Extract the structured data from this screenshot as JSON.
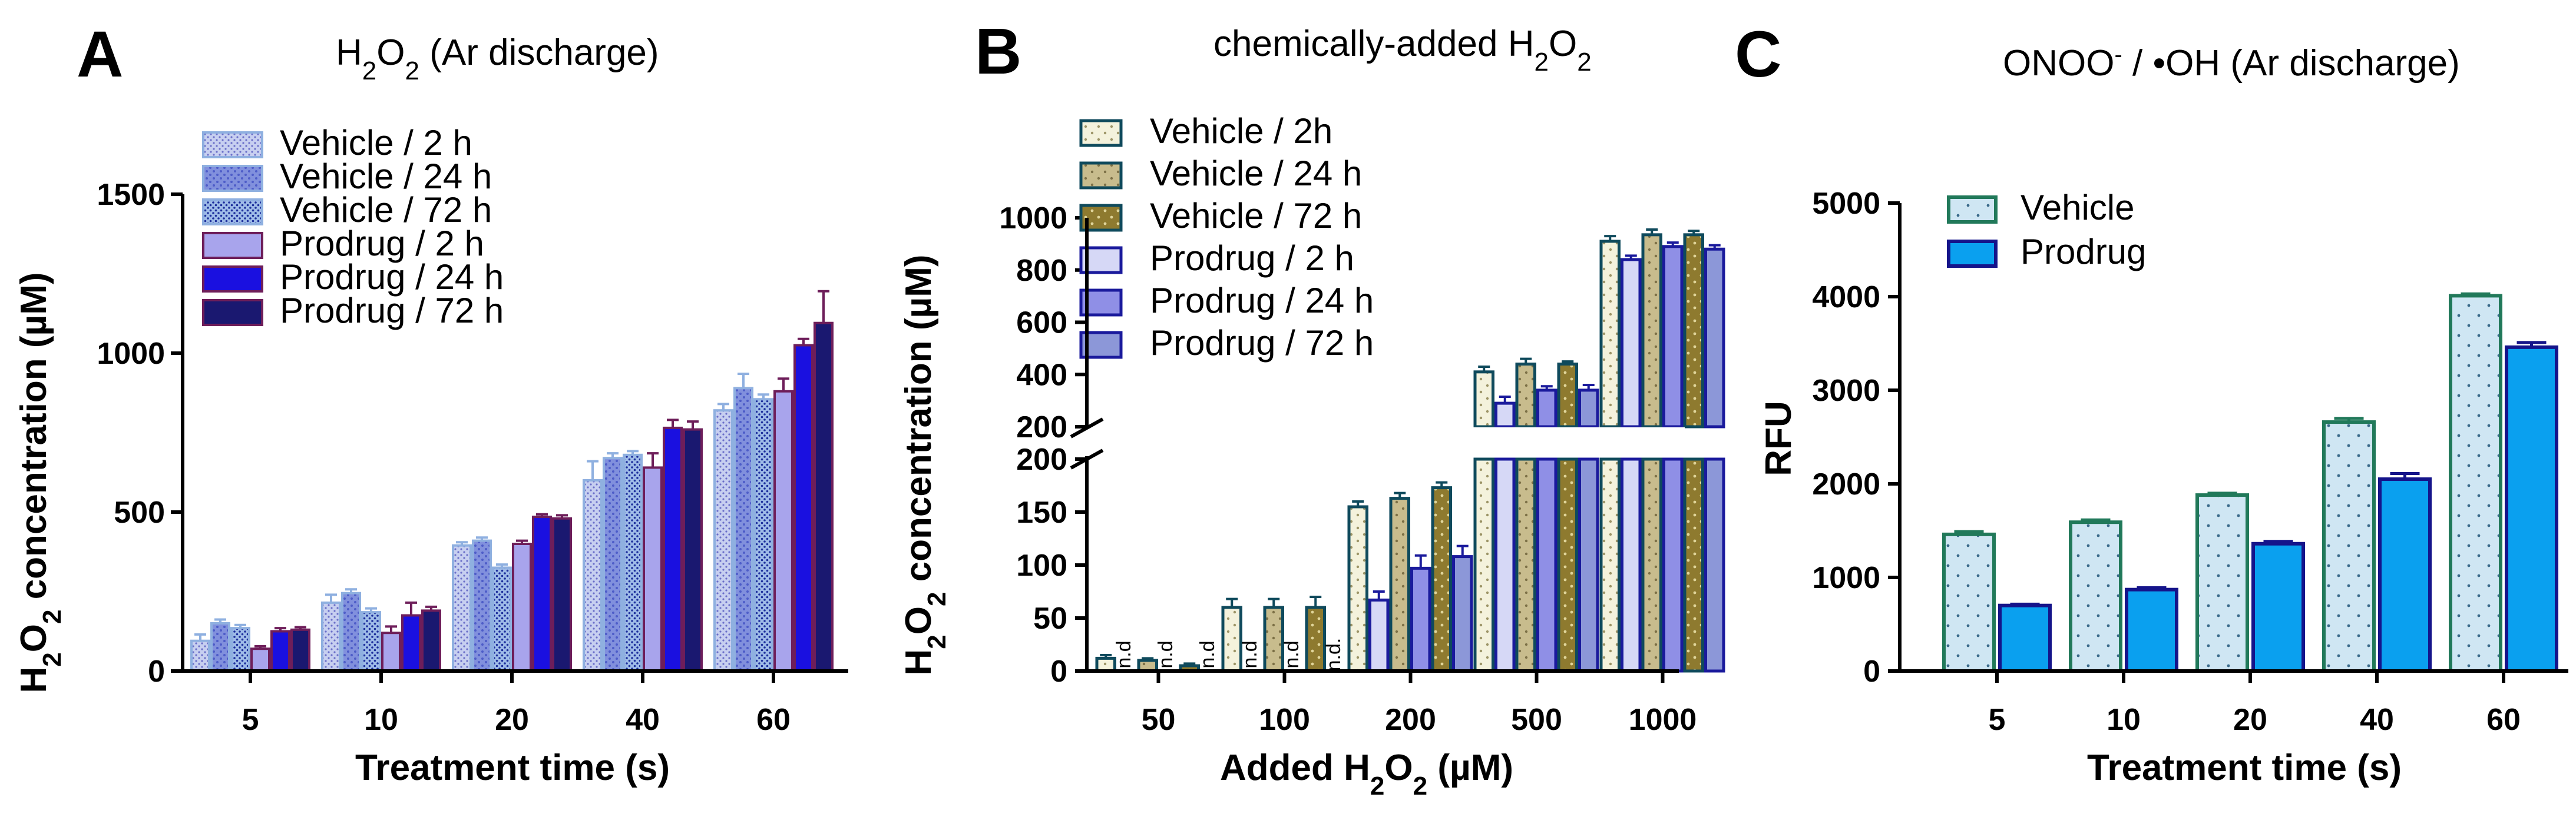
{
  "chart_data": [
    {
      "panel": "A",
      "type": "bar",
      "title": "H₂O₂ (Ar discharge)",
      "title_main": "H",
      "title_parts": [
        "H",
        "2",
        "O",
        "2",
        " (Ar discharge)"
      ],
      "xlabel": "Treatment time (s)",
      "ylabel_parts": [
        "H",
        "2",
        "O",
        "2",
        " concentration (µM)"
      ],
      "ylim": [
        0,
        1500
      ],
      "yticks": [
        "0",
        "500",
        "1000",
        "1500"
      ],
      "categories": [
        "5",
        "10",
        "20",
        "40",
        "60"
      ],
      "series": [
        {
          "name": "Vehicle / 2 h",
          "values": [
            95,
            215,
            395,
            600,
            820
          ],
          "errors": [
            20,
            25,
            10,
            60,
            20
          ]
        },
        {
          "name": "Vehicle / 24 h",
          "values": [
            150,
            245,
            410,
            670,
            890
          ],
          "errors": [
            12,
            12,
            10,
            15,
            45
          ]
        },
        {
          "name": "Vehicle / 72 h",
          "values": [
            135,
            185,
            325,
            680,
            855
          ],
          "errors": [
            10,
            12,
            10,
            12,
            15
          ]
        },
        {
          "name": "Prodrug / 2 h",
          "values": [
            70,
            120,
            400,
            640,
            880
          ],
          "errors": [
            8,
            20,
            10,
            45,
            40
          ]
        },
        {
          "name": "Prodrug / 24 h",
          "values": [
            125,
            175,
            485,
            765,
            1025
          ],
          "errors": [
            10,
            40,
            8,
            25,
            20
          ]
        },
        {
          "name": "Prodrug / 72 h",
          "values": [
            130,
            190,
            480,
            760,
            1095
          ],
          "errors": [
            8,
            12,
            10,
            25,
            100
          ]
        }
      ]
    },
    {
      "panel": "B",
      "type": "bar",
      "title_parts": [
        "chemically-added H",
        "2",
        "O",
        "2",
        ""
      ],
      "xlabel_parts": [
        "Added H",
        "2",
        "O",
        "2",
        " (µM)"
      ],
      "ylabel_parts": [
        "H",
        "2",
        "O",
        "2",
        " concentration (µM)"
      ],
      "broken_axis": true,
      "ylim_lower": [
        0,
        200
      ],
      "ylim_upper": [
        200,
        1000
      ],
      "yticks_lower": [
        "0",
        "50",
        "100",
        "150",
        "200"
      ],
      "yticks_upper": [
        "200",
        "400",
        "600",
        "800",
        "1000"
      ],
      "categories": [
        "50",
        "100",
        "200",
        "500",
        "1000"
      ],
      "not_detected_label": "n.d",
      "not_detected_label_dot": "n.d.",
      "series": [
        {
          "name": "Vehicle / 2h",
          "values": [
            12,
            60,
            155,
            410,
            910
          ],
          "errors": [
            3,
            8,
            5,
            20,
            20
          ]
        },
        {
          "name": "Prodrug / 2 h",
          "values": [
            null,
            null,
            67,
            290,
            840
          ],
          "errors": [
            0,
            0,
            8,
            25,
            15
          ]
        },
        {
          "name": "Vehicle / 24 h",
          "values": [
            10,
            60,
            163,
            440,
            935
          ],
          "errors": [
            2,
            8,
            5,
            20,
            20
          ]
        },
        {
          "name": "Prodrug / 24 h",
          "values": [
            null,
            null,
            97,
            340,
            890
          ],
          "errors": [
            0,
            0,
            12,
            15,
            15
          ]
        },
        {
          "name": "Vehicle / 72 h",
          "values": [
            5,
            60,
            173,
            440,
            935
          ],
          "errors": [
            2,
            10,
            5,
            10,
            15
          ]
        },
        {
          "name": "Prodrug / 72 h",
          "values": [
            null,
            null,
            108,
            340,
            880
          ],
          "errors": [
            0,
            0,
            10,
            20,
            15
          ]
        }
      ],
      "legend_order": [
        "Vehicle / 2h",
        "Vehicle / 24 h",
        "Vehicle / 72 h",
        "Prodrug / 2 h",
        "Prodrug / 24 h",
        "Prodrug / 72 h"
      ]
    },
    {
      "panel": "C",
      "type": "bar",
      "title_parts": [
        "ONOO",
        "-",
        " / •OH  (Ar discharge)"
      ],
      "xlabel": "Treatment time (s)",
      "ylabel": "RFU",
      "ylim": [
        0,
        5000
      ],
      "yticks": [
        "0",
        "1000",
        "2000",
        "3000",
        "4000",
        "5000"
      ],
      "categories": [
        "5",
        "10",
        "20",
        "40",
        "60"
      ],
      "series": [
        {
          "name": "Vehicle",
          "values": [
            1460,
            1590,
            1880,
            2660,
            4010
          ],
          "errors": [
            30,
            25,
            20,
            40,
            20
          ]
        },
        {
          "name": "Prodrug",
          "values": [
            700,
            870,
            1360,
            2050,
            3460
          ],
          "errors": [
            15,
            20,
            25,
            60,
            50
          ]
        }
      ]
    }
  ],
  "colors": {
    "A_fills": [
      "#b9c3ec",
      "#8a97e0",
      "#9ab6e4",
      "#a8a4ec",
      "#1a10e0",
      "#1a1870"
    ],
    "A_strokes": [
      "#8fb0e0",
      "#8fb0e0",
      "#8fb0e0",
      "#6e1e5a",
      "#6e1e5a",
      "#6e1e5a"
    ],
    "B_vehicle_fills": [
      "#f3f1d8",
      "#c5b98a",
      "#8c7730"
    ],
    "B_vehicle_stroke": "#0f4a5c",
    "B_prodrug_fills": [
      "#d6d8f6",
      "#8f8fe6",
      "#8c97d8"
    ],
    "B_prodrug_stroke": "#1a1a9c",
    "C_vehicle_fill": "#cfe6f3",
    "C_vehicle_stroke": "#21795a",
    "C_prodrug_fill": "#0aa0ef",
    "C_prodrug_stroke": "#15148a"
  }
}
